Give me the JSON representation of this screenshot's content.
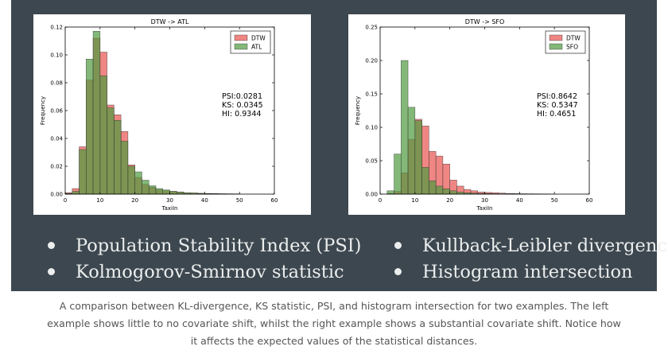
{
  "chart_data": [
    {
      "type": "bar",
      "title": "DTW -> ATL",
      "xlabel": "TaxiIn",
      "ylabel": "Frequency",
      "xlim": [
        0,
        60
      ],
      "ylim": [
        0,
        0.12
      ],
      "xticks": [
        0,
        10,
        20,
        30,
        40,
        50,
        60
      ],
      "yticks": [
        "0.00",
        "0.02",
        "0.04",
        "0.06",
        "0.08",
        "0.10",
        "0.12"
      ],
      "bin_edges": [
        0,
        2,
        4,
        6,
        8,
        10,
        12,
        14,
        16,
        18,
        20,
        22,
        24,
        26,
        28,
        30,
        32,
        34,
        36,
        38,
        40,
        42,
        44,
        46,
        48,
        50
      ],
      "legend_position": "top-right",
      "series": [
        {
          "name": "DTW",
          "color": "#e8524f",
          "values": [
            0.001,
            0.004,
            0.034,
            0.082,
            0.112,
            0.102,
            0.064,
            0.057,
            0.045,
            0.021,
            0.012,
            0.007,
            0.005,
            0.003,
            0.0025,
            0.002,
            0.0015,
            0.001,
            0.0008,
            0.0006,
            0.0005,
            0.0004,
            0.0003,
            0.0002,
            0.0002
          ]
        },
        {
          "name": "ATL",
          "color": "#4e9a3e",
          "values": [
            0.0005,
            0.002,
            0.032,
            0.097,
            0.117,
            0.085,
            0.062,
            0.053,
            0.038,
            0.02,
            0.016,
            0.01,
            0.006,
            0.004,
            0.003,
            0.002,
            0.0015,
            0.001,
            0.0008,
            0.0005,
            0.0004,
            0.0003,
            0.0002,
            0.0002,
            0.0001
          ]
        }
      ],
      "annotation": [
        "PSI:0.0281",
        "KS: 0.0345",
        "HI: 0.9344"
      ]
    },
    {
      "type": "bar",
      "title": "DTW -> SFO",
      "xlabel": "TaxiIn",
      "ylabel": "Frequency",
      "xlim": [
        0,
        60
      ],
      "ylim": [
        0,
        0.25
      ],
      "xticks": [
        0,
        10,
        20,
        30,
        40,
        50,
        60
      ],
      "yticks": [
        "0.00",
        "0.05",
        "0.10",
        "0.15",
        "0.20",
        "0.25"
      ],
      "bin_edges": [
        0,
        2,
        4,
        6,
        8,
        10,
        12,
        14,
        16,
        18,
        20,
        22,
        24,
        26,
        28,
        30,
        32,
        34,
        36,
        38,
        40,
        42,
        44,
        46,
        48,
        50
      ],
      "legend_position": "top-right",
      "series": [
        {
          "name": "DTW",
          "color": "#e8524f",
          "values": [
            0,
            0.001,
            0.004,
            0.032,
            0.082,
            0.112,
            0.102,
            0.064,
            0.057,
            0.045,
            0.021,
            0.012,
            0.007,
            0.005,
            0.003,
            0.0025,
            0.002,
            0.0015,
            0.001,
            0.0008,
            0.0006,
            0.0005,
            0.0004,
            0.0003,
            0.0002
          ]
        },
        {
          "name": "SFO",
          "color": "#4e9a3e",
          "values": [
            0,
            0.005,
            0.06,
            0.2,
            0.13,
            0.11,
            0.04,
            0.02,
            0.012,
            0.008,
            0.005,
            0.003,
            0.002,
            0.0015,
            0.001,
            0.0008,
            0.0005,
            0.0004,
            0.0003,
            0.0002,
            0.0001,
            0.0001,
            0.0001,
            0.0001,
            0
          ]
        }
      ],
      "annotation": [
        "PSI:0.8642",
        "KS: 0.5347",
        "HI: 0.4651"
      ]
    }
  ],
  "bullets": {
    "left": [
      "Population Stability Index (PSI)",
      "Kolmogorov-Smirnov statistic"
    ],
    "right": [
      "Kullback-Leibler divergence",
      "Histogram intersection"
    ]
  },
  "caption": {
    "line1": "A comparison between KL-divergence, KS statistic, PSI, and histogram intersection for two examples. The left",
    "line2": "example shows little to no covariate shift, whilst the right example shows a substantial covariate shift. Notice how",
    "line3": "it affects the expected values of the statistical distances."
  },
  "colors": {
    "panel": "#3c474f",
    "bullet_text": "#eceeee",
    "caption_text": "#555555"
  }
}
